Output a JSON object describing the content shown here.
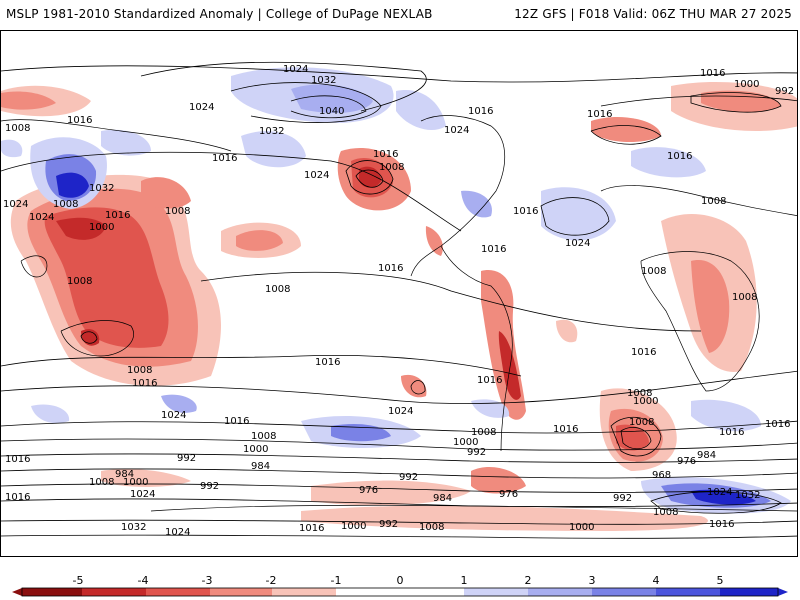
{
  "header": {
    "left": "MSLP 1981-2010 Standardized Anomaly | College of DuPage NEXLAB",
    "right": "12Z GFS | F018 Valid: 06Z THU MAR 27 2025"
  },
  "colors": {
    "neg5": "#8a0f0f",
    "neg4": "#c42a2a",
    "neg3": "#e0554e",
    "neg2": "#f08b7e",
    "neg1": "#f8c3b8",
    "zero": "#ffffff",
    "pos1": "#cfd3f7",
    "pos2": "#a8aef0",
    "pos3": "#7a82e6",
    "pos4": "#4c55dd",
    "pos5": "#1e24c8"
  },
  "colorbar": {
    "ticks": [
      "-5",
      "-4",
      "-3",
      "-2",
      "-1",
      "0",
      "1",
      "2",
      "3",
      "4",
      "5"
    ]
  },
  "contour_labels": [
    {
      "t": "1024"
    },
    {
      "t": "1032"
    },
    {
      "t": "1040"
    },
    {
      "t": "1024"
    },
    {
      "t": "1016"
    },
    {
      "t": "1008"
    },
    {
      "t": "1016"
    },
    {
      "t": "1032"
    },
    {
      "t": "1016"
    },
    {
      "t": "1024"
    },
    {
      "t": "1016"
    },
    {
      "t": "1008"
    },
    {
      "t": "1024"
    },
    {
      "t": "1016"
    },
    {
      "t": "1016"
    },
    {
      "t": "1016"
    },
    {
      "t": "1000"
    },
    {
      "t": "992"
    },
    {
      "t": "1024"
    },
    {
      "t": "1008"
    },
    {
      "t": "1032"
    },
    {
      "t": "1024"
    },
    {
      "t": "1008"
    },
    {
      "t": "1000"
    },
    {
      "t": "1016"
    },
    {
      "t": "1008"
    },
    {
      "t": "1008"
    },
    {
      "t": "1016"
    },
    {
      "t": "1016"
    },
    {
      "t": "1024"
    },
    {
      "t": "1016"
    },
    {
      "t": "1016"
    },
    {
      "t": "1008"
    },
    {
      "t": "1008"
    },
    {
      "t": "1016"
    },
    {
      "t": "1008"
    },
    {
      "t": "1016"
    },
    {
      "t": "1024"
    },
    {
      "t": "1016"
    },
    {
      "t": "1016"
    },
    {
      "t": "1024"
    },
    {
      "t": "1016"
    },
    {
      "t": "1008"
    },
    {
      "t": "1016"
    },
    {
      "t": "1016"
    },
    {
      "t": "1008"
    },
    {
      "t": "1000"
    },
    {
      "t": "992"
    },
    {
      "t": "968"
    },
    {
      "t": "976"
    },
    {
      "t": "984"
    },
    {
      "t": "1016"
    },
    {
      "t": "1008"
    },
    {
      "t": "1000"
    },
    {
      "t": "992"
    },
    {
      "t": "984"
    },
    {
      "t": "984"
    },
    {
      "t": "1008"
    },
    {
      "t": "1000"
    },
    {
      "t": "1024"
    },
    {
      "t": "992"
    },
    {
      "t": "992"
    },
    {
      "t": "976"
    },
    {
      "t": "984"
    },
    {
      "t": "976"
    },
    {
      "t": "992"
    },
    {
      "t": "1024"
    },
    {
      "t": "1032"
    },
    {
      "t": "1008"
    },
    {
      "t": "1016"
    },
    {
      "t": "1016"
    },
    {
      "t": "1032"
    },
    {
      "t": "1024"
    },
    {
      "t": "1016"
    },
    {
      "t": "1000"
    },
    {
      "t": "992"
    },
    {
      "t": "1008"
    },
    {
      "t": "1000"
    },
    {
      "t": "1008"
    },
    {
      "t": "1000"
    },
    {
      "t": "1008"
    }
  ]
}
